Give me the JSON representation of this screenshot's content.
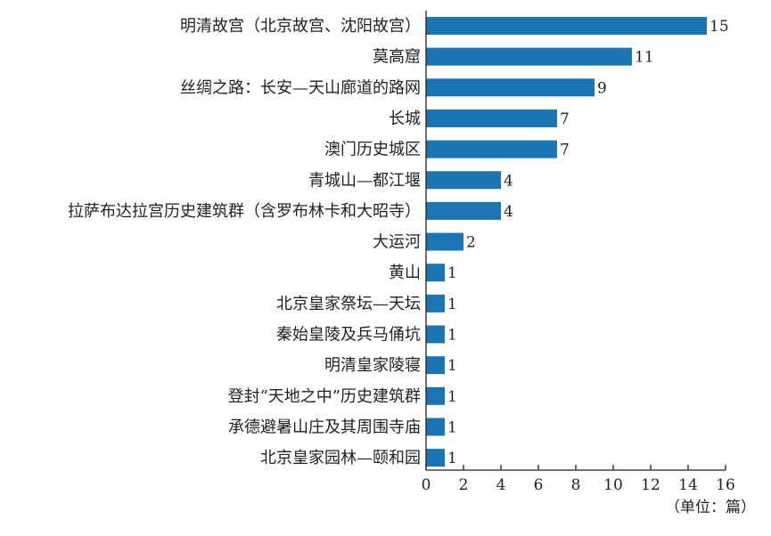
{
  "chart_data": {
    "type": "bar",
    "orientation": "horizontal",
    "categories": [
      "明清故宫（北京故宫、沈阳故宫）",
      "莫高窟",
      "丝绸之路：长安—天山廊道的路网",
      "长城",
      "澳门历史城区",
      "青城山—都江堰",
      "拉萨布达拉宫历史建筑群（含罗布林卡和大昭寺）",
      "大运河",
      "黄山",
      "北京皇家祭坛—天坛",
      "秦始皇陵及兵马俑坑",
      "明清皇家陵寝",
      "登封“天地之中”历史建筑群",
      "承德避暑山庄及其周围寺庙",
      "北京皇家园林—颐和园"
    ],
    "values": [
      15,
      11,
      9,
      7,
      7,
      4,
      4,
      2,
      1,
      1,
      1,
      1,
      1,
      1,
      1
    ],
    "xlim": [
      0,
      16
    ],
    "xticks": [
      0,
      2,
      4,
      6,
      8,
      10,
      12,
      14,
      16
    ],
    "unit": "（单位：篇）",
    "grid": false,
    "bar_color": "#1b75b5"
  }
}
